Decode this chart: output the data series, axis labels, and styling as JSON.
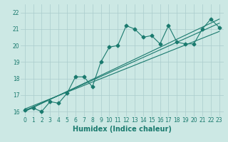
{
  "title": "",
  "xlabel": "Humidex (Indice chaleur)",
  "ylabel": "",
  "bg_color": "#cce8e4",
  "grid_color": "#aacccc",
  "line_color": "#1a7a6e",
  "xlim": [
    -0.5,
    23.5
  ],
  "ylim": [
    15.7,
    22.5
  ],
  "xticks": [
    0,
    1,
    2,
    3,
    4,
    5,
    6,
    7,
    8,
    9,
    10,
    11,
    12,
    13,
    14,
    15,
    16,
    17,
    18,
    19,
    20,
    21,
    22,
    23
  ],
  "yticks": [
    16,
    17,
    18,
    19,
    20,
    21,
    22
  ],
  "series1_x": [
    0,
    1,
    2,
    3,
    4,
    5,
    6,
    7,
    8,
    9,
    10,
    11,
    12,
    13,
    14,
    15,
    16,
    17,
    18,
    19,
    20,
    21,
    22,
    23
  ],
  "series1_y": [
    16.1,
    16.2,
    16.0,
    16.6,
    16.5,
    17.1,
    18.1,
    18.1,
    17.5,
    19.0,
    19.9,
    20.0,
    21.2,
    21.0,
    20.5,
    20.6,
    20.1,
    21.2,
    20.2,
    20.1,
    20.1,
    21.0,
    21.6,
    21.1
  ],
  "series2_x": [
    0,
    23
  ],
  "series2_y": [
    16.05,
    21.35
  ],
  "series3_x": [
    0,
    23
  ],
  "series3_y": [
    16.15,
    20.85
  ],
  "series4_x": [
    0,
    23
  ],
  "series4_y": [
    16.0,
    21.6
  ],
  "marker": "D",
  "markersize": 2.5,
  "linewidth": 0.8,
  "tick_fontsize": 5.5,
  "xlabel_fontsize": 7
}
